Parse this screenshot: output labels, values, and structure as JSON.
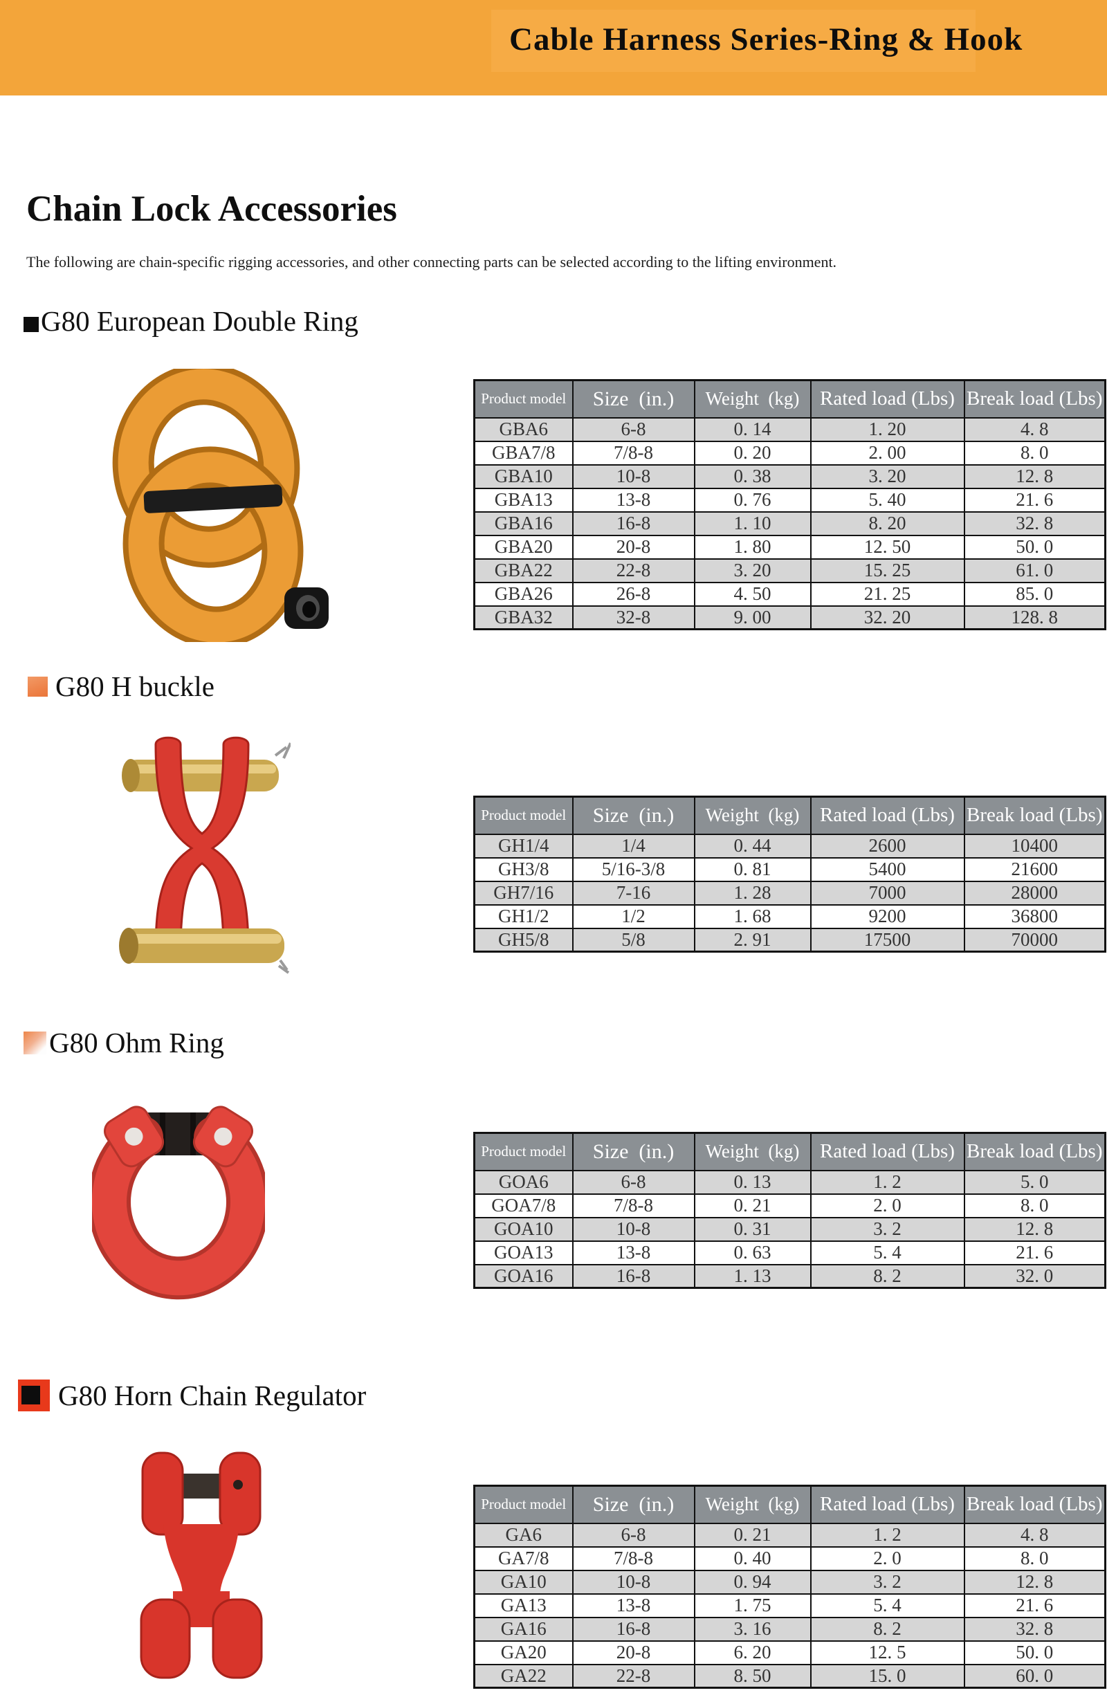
{
  "banner": {
    "title": "Cable Harness Series-Ring & Hook"
  },
  "intro": {
    "title": "Chain Lock Accessories",
    "subtitle": "The following are chain-specific rigging accessories, and other connecting parts can be selected according to the lifting environment."
  },
  "table_headers": [
    "Product model",
    "Size  (in.)",
    "Weight  (kg)",
    "Rated load (Lbs)",
    "Break load (Lbs)"
  ],
  "sections": [
    {
      "heading": "G80 European Double Ring",
      "image": "gold double connecting link with black pin and sleeve",
      "rows": [
        [
          "GBA6",
          "6-8",
          "0. 14",
          "1. 20",
          "4. 8"
        ],
        [
          "GBA7/8",
          "7/8-8",
          "0. 20",
          "2. 00",
          "8. 0"
        ],
        [
          "GBA10",
          "10-8",
          "0. 38",
          "3. 20",
          "12. 8"
        ],
        [
          "GBA13",
          "13-8",
          "0. 76",
          "5. 40",
          "21. 6"
        ],
        [
          "GBA16",
          "16-8",
          "1. 10",
          "8. 20",
          "32. 8"
        ],
        [
          "GBA20",
          "20-8",
          "1. 80",
          "12. 50",
          "50. 0"
        ],
        [
          "GBA22",
          "22-8",
          "3. 20",
          "15. 25",
          "61. 0"
        ],
        [
          "GBA26",
          "26-8",
          "4. 50",
          "21. 25",
          "85. 0"
        ],
        [
          "GBA32",
          "32-8",
          "9. 00",
          "32. 20",
          "128. 8"
        ]
      ]
    },
    {
      "heading": "G80 H buckle",
      "image": "red H-shaped twin clevis link with two brass pins",
      "rows": [
        [
          "GH1/4",
          "1/4",
          "0. 44",
          "2600",
          "10400"
        ],
        [
          "GH3/8",
          "5/16-3/8",
          "0. 81",
          "5400",
          "21600"
        ],
        [
          "GH7/16",
          "7-16",
          "1. 28",
          "7000",
          "28000"
        ],
        [
          "GH1/2",
          "1/2",
          "1. 68",
          "9200",
          "36800"
        ],
        [
          "GH5/8",
          "5/8",
          "2. 91",
          "17500",
          "70000"
        ]
      ]
    },
    {
      "heading": "G80 Ohm Ring",
      "image": "red omega-shaped ring with black pin",
      "rows": [
        [
          "GOA6",
          "6-8",
          "0. 13",
          "1. 2",
          "5. 0"
        ],
        [
          "GOA7/8",
          "7/8-8",
          "0. 21",
          "2. 0",
          "8. 0"
        ],
        [
          "GOA10",
          "10-8",
          "0. 31",
          "3. 2",
          "12. 8"
        ],
        [
          "GOA13",
          "13-8",
          "0. 63",
          "5. 4",
          "21. 6"
        ],
        [
          "GOA16",
          "16-8",
          "1. 13",
          "8. 2",
          "32. 0"
        ]
      ]
    },
    {
      "heading": "G80 Horn Chain Regulator",
      "image": "red clevis chain shortener with dark pin",
      "rows": [
        [
          "GA6",
          "6-8",
          "0. 21",
          "1. 2",
          "4. 8"
        ],
        [
          "GA7/8",
          "7/8-8",
          "0. 40",
          "2. 0",
          "8. 0"
        ],
        [
          "GA10",
          "10-8",
          "0. 94",
          "3. 2",
          "12. 8"
        ],
        [
          "GA13",
          "13-8",
          "1. 75",
          "5. 4",
          "21. 6"
        ],
        [
          "GA16",
          "16-8",
          "3. 16",
          "8. 2",
          "32. 8"
        ],
        [
          "GA20",
          "20-8",
          "6. 20",
          "12. 5",
          "50. 0"
        ],
        [
          "GA22",
          "22-8",
          "8. 50",
          "15. 0",
          "60. 0"
        ]
      ]
    }
  ],
  "colors": {
    "banner_orange": "#F3A53A",
    "table_header_gray": "#8B9094",
    "row_stripe_gray": "#D6D6D6",
    "accent_red_square": "#E8391B",
    "accent_orange_square": "#ED7F45",
    "link_gold": "#E89B33",
    "hardware_red": "#D8352B"
  }
}
